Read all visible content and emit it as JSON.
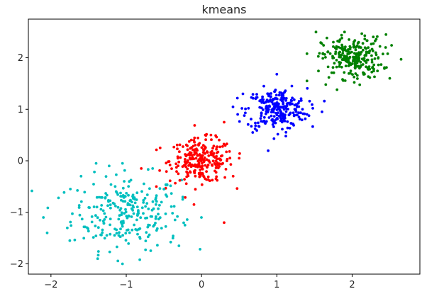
{
  "chart_data": {
    "type": "scatter",
    "title": "kmeans",
    "xlabel": "",
    "ylabel": "",
    "xlim": [
      -2.3,
      2.9
    ],
    "ylim": [
      -2.2,
      2.75
    ],
    "xticks": [
      -2,
      -1,
      0,
      1,
      2
    ],
    "yticks": [
      -2,
      -1,
      0,
      1,
      2
    ],
    "grid": false,
    "legend": "none",
    "clusters": [
      {
        "color": "#00bfbf",
        "center": [
          -1.0,
          -1.0
        ],
        "spread": [
          0.36,
          0.36
        ],
        "count": 250
      },
      {
        "color": "#ff0000",
        "center": [
          0.0,
          0.0
        ],
        "spread": [
          0.21,
          0.21
        ],
        "count": 250
      },
      {
        "color": "#0000ff",
        "center": [
          1.0,
          1.0
        ],
        "spread": [
          0.2,
          0.2
        ],
        "count": 250
      },
      {
        "color": "#008000",
        "center": [
          2.0,
          2.0
        ],
        "spread": [
          0.2,
          0.2
        ],
        "count": 250
      }
    ],
    "points": [
      {
        "x": -2.1,
        "y": -1.1,
        "color": "#00bfbf"
      },
      {
        "x": -2.05,
        "y": -1.4,
        "color": "#00bfbf"
      },
      {
        "x": -1.9,
        "y": -0.72,
        "color": "#00bfbf"
      },
      {
        "x": -1.75,
        "y": -1.55,
        "color": "#00bfbf"
      },
      {
        "x": -1.38,
        "y": -1.9,
        "color": "#00bfbf"
      },
      {
        "x": -1.05,
        "y": -2.0,
        "color": "#00bfbf"
      },
      {
        "x": -0.82,
        "y": -1.92,
        "color": "#00bfbf"
      },
      {
        "x": -0.3,
        "y": -1.65,
        "color": "#00bfbf"
      },
      {
        "x": -0.22,
        "y": -1.25,
        "color": "#00bfbf"
      },
      {
        "x": -1.4,
        "y": -0.05,
        "color": "#00bfbf"
      },
      {
        "x": -1.05,
        "y": -0.05,
        "color": "#00bfbf"
      },
      {
        "x": -0.65,
        "y": -0.15,
        "color": "#00bfbf"
      },
      {
        "x": -0.25,
        "y": -0.75,
        "color": "#00bfbf"
      },
      {
        "x": -0.5,
        "y": -0.55,
        "color": "#00bfbf"
      },
      {
        "x": -0.38,
        "y": -1.5,
        "color": "#00bfbf"
      },
      {
        "x": -1.6,
        "y": -0.3,
        "color": "#00bfbf"
      },
      {
        "x": 0.3,
        "y": -1.2,
        "color": "#ff0000"
      },
      {
        "x": -0.6,
        "y": -0.5,
        "color": "#ff0000"
      },
      {
        "x": -0.8,
        "y": -0.15,
        "color": "#ff0000"
      },
      {
        "x": -0.55,
        "y": 0.25,
        "color": "#ff0000"
      },
      {
        "x": 0.05,
        "y": 0.5,
        "color": "#ff0000"
      },
      {
        "x": 0.5,
        "y": 0.05,
        "color": "#ff0000"
      },
      {
        "x": 0.42,
        "y": -0.3,
        "color": "#ff0000"
      },
      {
        "x": 0.3,
        "y": 0.75,
        "color": "#ff0000"
      },
      {
        "x": -0.1,
        "y": -0.85,
        "color": "#ff0000"
      },
      {
        "x": 0.55,
        "y": 1.3,
        "color": "#0000ff"
      },
      {
        "x": 0.48,
        "y": 0.9,
        "color": "#0000ff"
      },
      {
        "x": 1.0,
        "y": 1.68,
        "color": "#0000ff"
      },
      {
        "x": 1.2,
        "y": 1.45,
        "color": "#0000ff"
      },
      {
        "x": 1.4,
        "y": 0.9,
        "color": "#0000ff"
      },
      {
        "x": 1.6,
        "y": 0.95,
        "color": "#0000ff"
      },
      {
        "x": 0.68,
        "y": 0.55,
        "color": "#0000ff"
      },
      {
        "x": 1.12,
        "y": 0.48,
        "color": "#0000ff"
      },
      {
        "x": 1.4,
        "y": 1.55,
        "color": "#008000"
      },
      {
        "x": 1.52,
        "y": 2.5,
        "color": "#008000"
      },
      {
        "x": 1.9,
        "y": 2.5,
        "color": "#008000"
      },
      {
        "x": 2.45,
        "y": 2.45,
        "color": "#008000"
      },
      {
        "x": 2.65,
        "y": 1.97,
        "color": "#008000"
      },
      {
        "x": 2.5,
        "y": 1.6,
        "color": "#008000"
      },
      {
        "x": 1.8,
        "y": 1.38,
        "color": "#008000"
      },
      {
        "x": 1.65,
        "y": 1.48,
        "color": "#008000"
      }
    ]
  }
}
